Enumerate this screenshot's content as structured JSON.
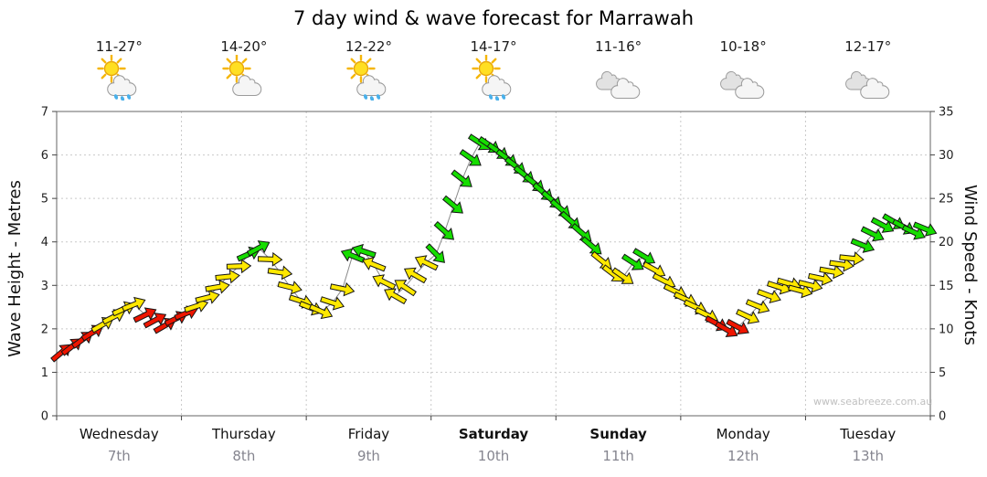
{
  "watermark": "www.seabreeze.com.au",
  "chart_data": {
    "type": "line",
    "subtype": "wind-arrow-forecast",
    "title": "7 day wind & wave forecast for Marrawah",
    "left_axis": {
      "label": "Wave Height - Metres",
      "min": 0,
      "max": 7,
      "ticks": [
        0,
        1,
        2,
        3,
        4,
        5,
        6,
        7
      ]
    },
    "right_axis": {
      "label": "Wind Speed - Knots",
      "min": 0,
      "max": 35,
      "ticks": [
        0,
        5,
        10,
        15,
        20,
        25,
        30,
        35
      ]
    },
    "grid": "dotted",
    "days": [
      {
        "name": "Wednesday",
        "date": "7th",
        "temp": "11-27°",
        "icon": "sun-cloud-rain",
        "bold": false
      },
      {
        "name": "Thursday",
        "date": "8th",
        "temp": "14-20°",
        "icon": "sun-cloud",
        "bold": false
      },
      {
        "name": "Friday",
        "date": "9th",
        "temp": "12-22°",
        "icon": "sun-cloud-rain",
        "bold": false
      },
      {
        "name": "Saturday",
        "date": "10th",
        "temp": "14-17°",
        "icon": "sun-cloud-rain",
        "bold": true
      },
      {
        "name": "Sunday",
        "date": "11th",
        "temp": "11-16°",
        "icon": "cloudy",
        "bold": true
      },
      {
        "name": "Monday",
        "date": "12th",
        "temp": "10-18°",
        "icon": "cloudy",
        "bold": false
      },
      {
        "name": "Tuesday",
        "date": "13th",
        "temp": "12-17°",
        "icon": "cloudy",
        "bold": false
      }
    ],
    "colors": {
      "r": "#ee1500",
      "y": "#ffe800",
      "g": "#16dd00",
      "outline": "#151515",
      "trend_line": "#8a8a8a"
    },
    "point_format": [
      "time_days",
      "wind_knots",
      "arrow_direction_deg",
      "color"
    ],
    "points": [
      [
        0.0,
        7.3,
        -40,
        "r"
      ],
      [
        0.085,
        8.0,
        -38,
        "r"
      ],
      [
        0.17,
        8.8,
        -36,
        "r"
      ],
      [
        0.25,
        9.6,
        -32,
        "r"
      ],
      [
        0.33,
        10.5,
        -30,
        "y"
      ],
      [
        0.42,
        11.4,
        -27,
        "y"
      ],
      [
        0.5,
        12.3,
        -24,
        "y"
      ],
      [
        0.58,
        12.8,
        -22,
        "y"
      ],
      [
        0.67,
        11.6,
        -26,
        "r"
      ],
      [
        0.75,
        11.0,
        -28,
        "r"
      ],
      [
        0.83,
        10.4,
        -30,
        "r"
      ],
      [
        0.92,
        11.2,
        -26,
        "r"
      ],
      [
        1.0,
        11.8,
        -22,
        "r"
      ],
      [
        1.08,
        12.6,
        -18,
        "y"
      ],
      [
        1.17,
        13.6,
        -14,
        "y"
      ],
      [
        1.25,
        14.8,
        -10,
        "y"
      ],
      [
        1.33,
        16.0,
        -6,
        "y"
      ],
      [
        1.42,
        17.2,
        -2,
        "y"
      ],
      [
        1.5,
        18.6,
        -24,
        "g"
      ],
      [
        1.58,
        19.3,
        -28,
        "g"
      ],
      [
        1.67,
        18.0,
        2,
        "y"
      ],
      [
        1.75,
        16.5,
        8,
        "y"
      ],
      [
        1.83,
        14.8,
        14,
        "y"
      ],
      [
        1.92,
        13.2,
        18,
        "y"
      ],
      [
        2.0,
        12.4,
        22,
        "y"
      ],
      [
        2.08,
        12.0,
        24,
        "y"
      ],
      [
        2.17,
        13.0,
        18,
        "y"
      ],
      [
        2.25,
        14.6,
        12,
        "y"
      ],
      [
        2.33,
        18.4,
        202,
        "g"
      ],
      [
        2.42,
        18.9,
        198,
        "g"
      ],
      [
        2.5,
        17.4,
        202,
        "y"
      ],
      [
        2.58,
        15.4,
        206,
        "y"
      ],
      [
        2.67,
        13.8,
        210,
        "y"
      ],
      [
        2.75,
        14.8,
        214,
        "y"
      ],
      [
        2.83,
        16.2,
        210,
        "y"
      ],
      [
        2.92,
        17.6,
        206,
        "y"
      ],
      [
        3.0,
        18.6,
        45,
        "g"
      ],
      [
        3.07,
        21.2,
        42,
        "g"
      ],
      [
        3.14,
        24.2,
        40,
        "g"
      ],
      [
        3.21,
        27.2,
        38,
        "g"
      ],
      [
        3.28,
        29.6,
        35,
        "g"
      ],
      [
        3.35,
        31.4,
        33,
        "g"
      ],
      [
        3.43,
        31.1,
        34,
        "g"
      ],
      [
        3.5,
        30.4,
        35,
        "g"
      ],
      [
        3.57,
        29.6,
        36,
        "g"
      ],
      [
        3.64,
        28.7,
        37,
        "g"
      ],
      [
        3.71,
        27.7,
        38,
        "g"
      ],
      [
        3.79,
        26.7,
        39,
        "g"
      ],
      [
        3.86,
        25.7,
        40,
        "g"
      ],
      [
        3.93,
        24.8,
        40,
        "g"
      ],
      [
        4.0,
        23.8,
        41,
        "g"
      ],
      [
        4.08,
        22.4,
        41,
        "g"
      ],
      [
        4.17,
        21.0,
        41,
        "g"
      ],
      [
        4.25,
        19.5,
        40,
        "g"
      ],
      [
        4.33,
        17.8,
        39,
        "y"
      ],
      [
        4.42,
        16.3,
        37,
        "y"
      ],
      [
        4.5,
        16.0,
        35,
        "y"
      ],
      [
        4.58,
        17.6,
        33,
        "g"
      ],
      [
        4.67,
        18.3,
        31,
        "g"
      ],
      [
        4.75,
        16.8,
        29,
        "y"
      ],
      [
        4.83,
        15.5,
        27,
        "y"
      ],
      [
        4.92,
        14.3,
        26,
        "y"
      ],
      [
        5.0,
        13.4,
        25,
        "y"
      ],
      [
        5.08,
        12.5,
        25,
        "y"
      ],
      [
        5.17,
        11.6,
        26,
        "y"
      ],
      [
        5.25,
        10.6,
        28,
        "r"
      ],
      [
        5.33,
        9.9,
        30,
        "r"
      ],
      [
        5.42,
        10.2,
        28,
        "r"
      ],
      [
        5.5,
        11.4,
        25,
        "y"
      ],
      [
        5.58,
        12.6,
        22,
        "y"
      ],
      [
        5.67,
        13.8,
        20,
        "y"
      ],
      [
        5.75,
        14.8,
        18,
        "y"
      ],
      [
        5.83,
        15.2,
        16,
        "y"
      ],
      [
        5.92,
        14.4,
        15,
        "y"
      ],
      [
        6.0,
        15.0,
        14,
        "y"
      ],
      [
        6.08,
        15.8,
        12,
        "y"
      ],
      [
        6.17,
        16.6,
        10,
        "y"
      ],
      [
        6.25,
        17.4,
        8,
        "y"
      ],
      [
        6.33,
        18.1,
        6,
        "y"
      ],
      [
        6.42,
        19.6,
        22,
        "g"
      ],
      [
        6.5,
        20.9,
        26,
        "g"
      ],
      [
        6.58,
        21.9,
        28,
        "g"
      ],
      [
        6.67,
        22.3,
        30,
        "g"
      ],
      [
        6.75,
        21.7,
        28,
        "g"
      ],
      [
        6.83,
        21.1,
        25,
        "g"
      ],
      [
        6.92,
        21.5,
        22,
        "g"
      ]
    ]
  }
}
